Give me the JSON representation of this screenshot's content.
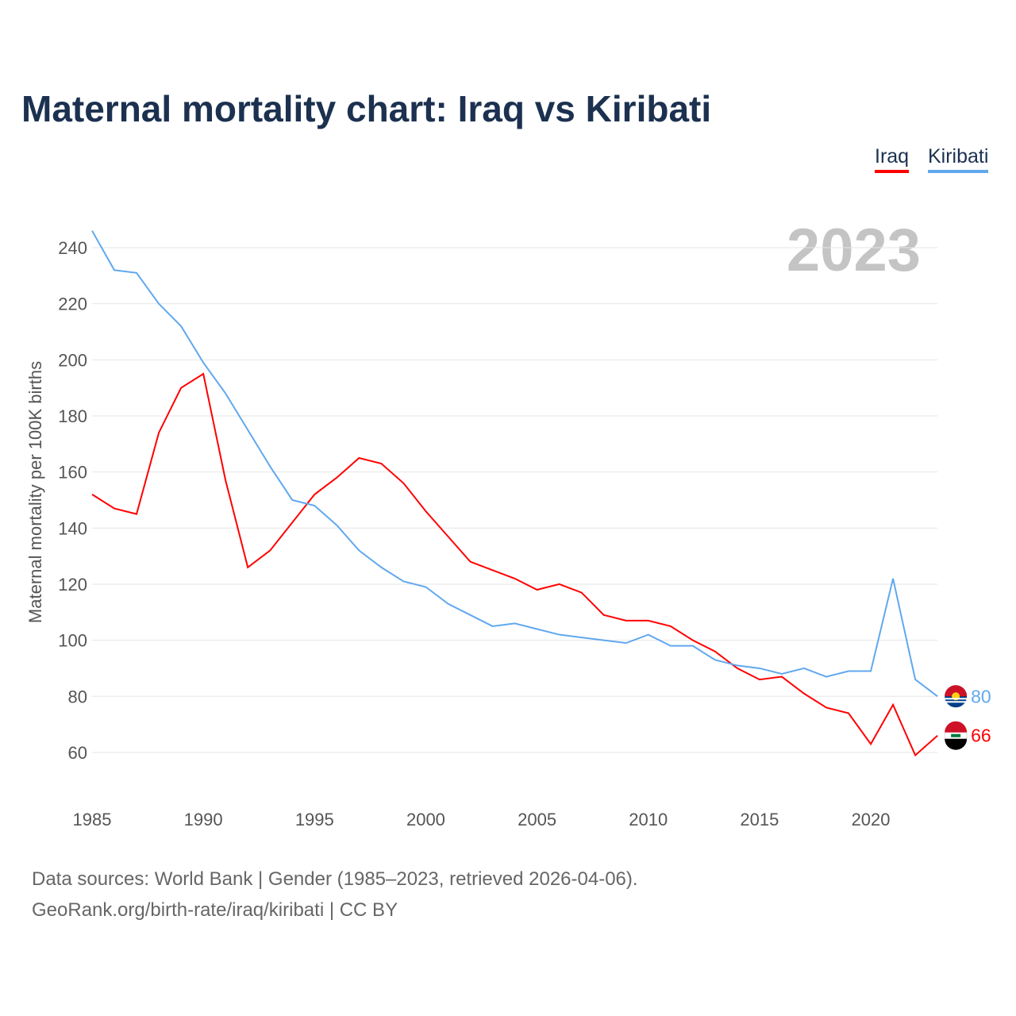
{
  "title": "Maternal mortality chart: Iraq vs Kiribati",
  "year_label": "2023",
  "footer": {
    "line1": "Data sources: World Bank | Gender (1985–2023, retrieved 2026-04-06).",
    "line2": "GeoRank.org/birth-rate/iraq/kiribati | CC BY"
  },
  "chart_data": {
    "type": "line",
    "title": "Maternal mortality chart: Iraq vs Kiribati",
    "xlabel": "",
    "ylabel": "Maternal mortality per 100K births",
    "xlim": [
      1985,
      2023
    ],
    "ylim": [
      50,
      250
    ],
    "x_ticks": [
      "1985",
      "1990",
      "1995",
      "2000",
      "2005",
      "2010",
      "2015",
      "2020"
    ],
    "y_ticks": [
      "60",
      "80",
      "100",
      "120",
      "140",
      "160",
      "180",
      "200",
      "220",
      "240"
    ],
    "grid": true,
    "legend_placement": "top-right",
    "x": [
      1985,
      1986,
      1987,
      1988,
      1989,
      1990,
      1991,
      1992,
      1993,
      1994,
      1995,
      1996,
      1997,
      1998,
      1999,
      2000,
      2001,
      2002,
      2003,
      2004,
      2005,
      2006,
      2007,
      2008,
      2009,
      2010,
      2011,
      2012,
      2013,
      2014,
      2015,
      2016,
      2017,
      2018,
      2019,
      2020,
      2021,
      2022,
      2023
    ],
    "series": [
      {
        "name": "Iraq",
        "color": "#ff0000",
        "end_label": "66",
        "values": [
          152,
          147,
          145,
          174,
          190,
          195,
          157,
          126,
          132,
          142,
          152,
          158,
          165,
          163,
          156,
          146,
          137,
          128,
          125,
          122,
          118,
          120,
          117,
          109,
          107,
          107,
          105,
          100,
          96,
          90,
          86,
          87,
          81,
          76,
          74,
          63,
          77,
          59,
          66
        ]
      },
      {
        "name": "Kiribati",
        "color": "#61a8ee",
        "end_label": "80",
        "values": [
          246,
          232,
          231,
          220,
          212,
          199,
          188,
          175,
          162,
          150,
          148,
          141,
          132,
          126,
          121,
          119,
          113,
          109,
          105,
          106,
          104,
          102,
          101,
          100,
          99,
          102,
          98,
          98,
          93,
          91,
          90,
          88,
          90,
          87,
          89,
          89,
          122,
          86,
          80
        ]
      }
    ]
  }
}
